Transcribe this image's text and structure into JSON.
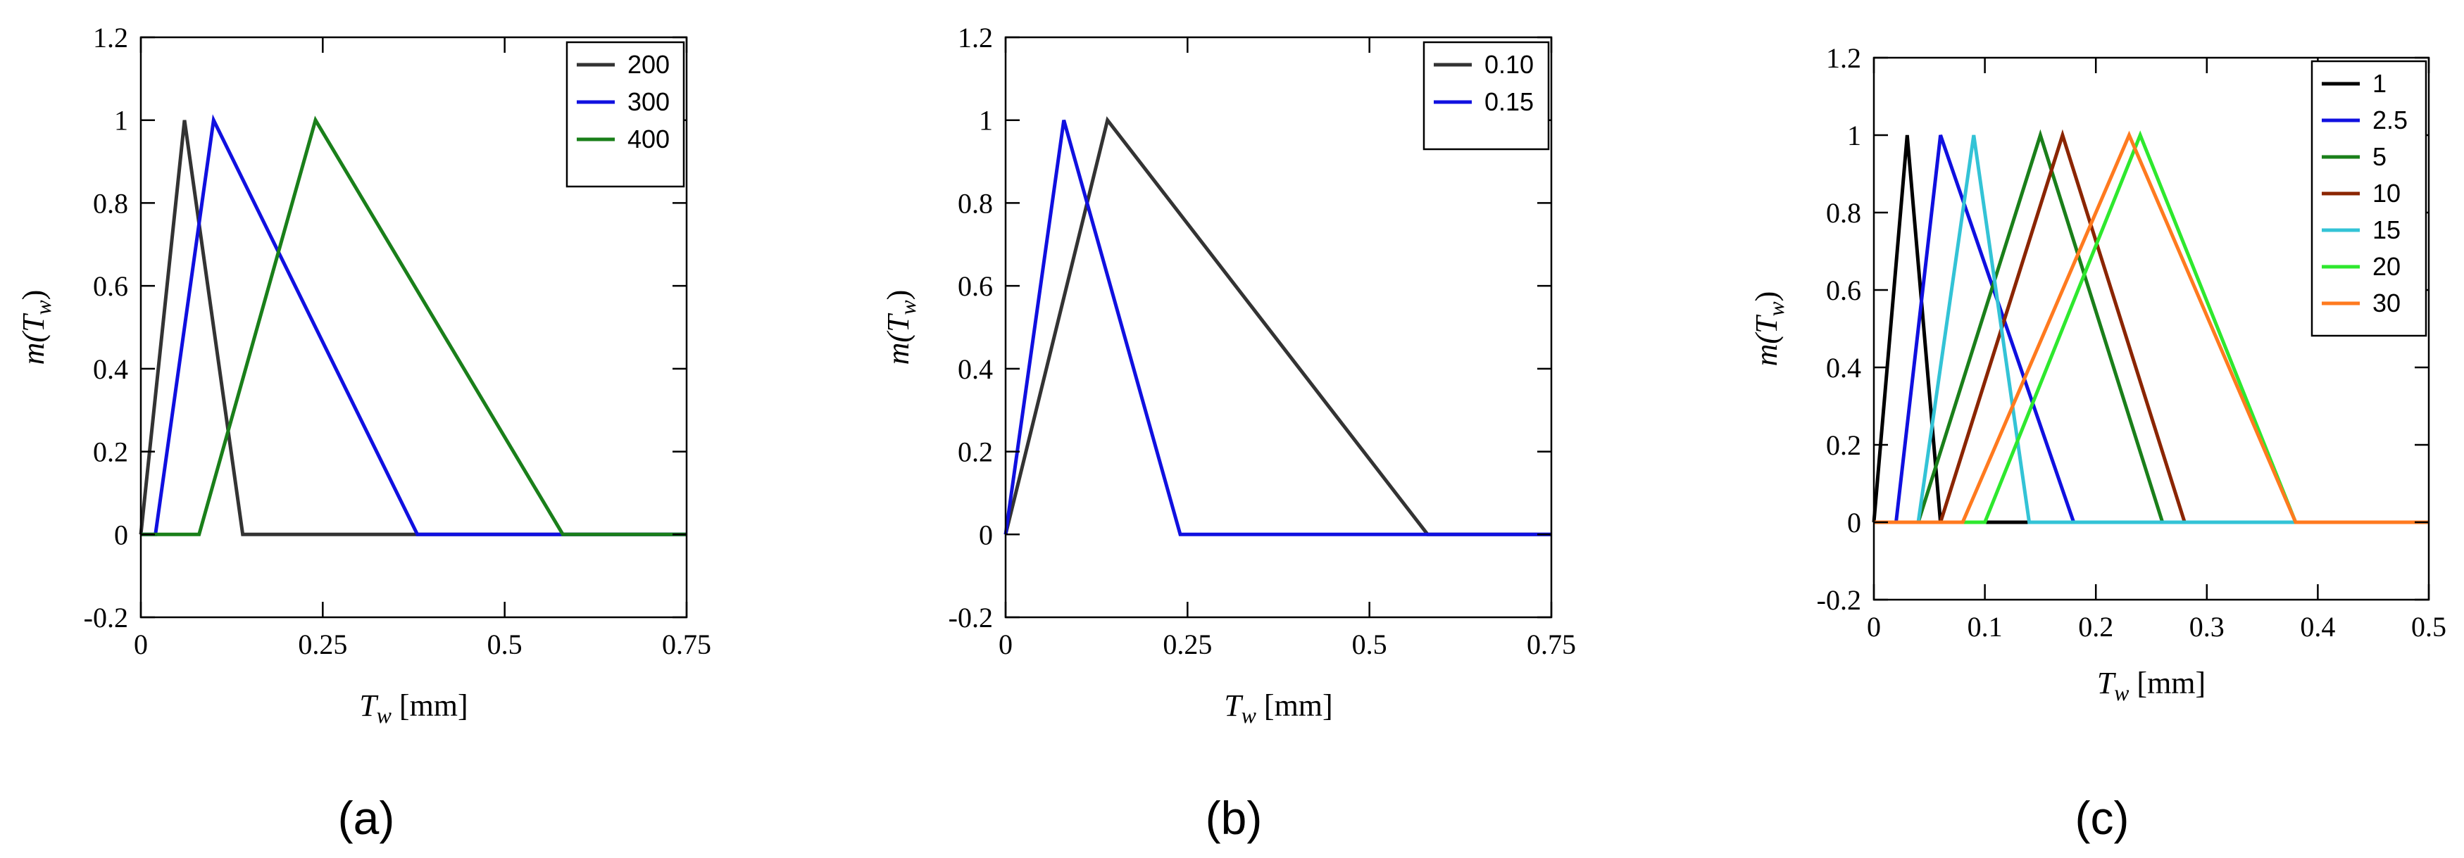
{
  "captions": [
    "(a)",
    "(b)",
    "(c)"
  ],
  "chart_data": [
    {
      "type": "line",
      "title": "",
      "xlabel": {
        "main": "T",
        "sub": "w",
        "unit": " [mm]"
      },
      "ylabel": {
        "func": "m(",
        "var": "T",
        "sub": "w",
        "close": ")"
      },
      "xlim": [
        0,
        0.75
      ],
      "ylim": [
        -0.2,
        1.2
      ],
      "xticks": [
        0,
        0.25,
        0.5,
        0.75
      ],
      "xtick_labels": [
        "0",
        "0.25",
        "0.5",
        "0.75"
      ],
      "yticks": [
        -0.2,
        0,
        0.2,
        0.4,
        0.6,
        0.8,
        1,
        1.2
      ],
      "ytick_labels": [
        "-0.2",
        "0",
        "0.2",
        "0.4",
        "0.6",
        "0.8",
        "1",
        "1.2"
      ],
      "grid": false,
      "legend_position": "top-right",
      "series": [
        {
          "name": "200",
          "color": "#333333",
          "x": [
            0,
            0.06,
            0.14,
            0.75
          ],
          "y": [
            0,
            1,
            0,
            0
          ]
        },
        {
          "name": "300",
          "color": "#1010e0",
          "x": [
            0,
            0.02,
            0.1,
            0.38,
            0.75
          ],
          "y": [
            0,
            0,
            1,
            0,
            0
          ]
        },
        {
          "name": "400",
          "color": "#1a7f1a",
          "x": [
            0,
            0.08,
            0.24,
            0.58,
            0.75
          ],
          "y": [
            0,
            0,
            1,
            0,
            0
          ]
        }
      ]
    },
    {
      "type": "line",
      "title": "",
      "xlabel": {
        "main": "T",
        "sub": "w",
        "unit": " [mm]"
      },
      "ylabel": {
        "func": "m(",
        "var": "T",
        "sub": "w",
        "close": ")"
      },
      "xlim": [
        0,
        0.75
      ],
      "ylim": [
        -0.2,
        1.2
      ],
      "xticks": [
        0,
        0.25,
        0.5,
        0.75
      ],
      "xtick_labels": [
        "0",
        "0.25",
        "0.5",
        "0.75"
      ],
      "yticks": [
        -0.2,
        0,
        0.2,
        0.4,
        0.6,
        0.8,
        1,
        1.2
      ],
      "ytick_labels": [
        "-0.2",
        "0",
        "0.2",
        "0.4",
        "0.6",
        "0.8",
        "1",
        "1.2"
      ],
      "grid": false,
      "legend_position": "top-right",
      "series": [
        {
          "name": "0.10",
          "color": "#333333",
          "x": [
            0,
            0.14,
            0.58,
            0.75
          ],
          "y": [
            0,
            1,
            0,
            0
          ]
        },
        {
          "name": "0.15",
          "color": "#1010e0",
          "x": [
            0,
            0.08,
            0.24,
            0.75
          ],
          "y": [
            0,
            1,
            0,
            0
          ]
        }
      ]
    },
    {
      "type": "line",
      "title": "",
      "xlabel": {
        "main": "T",
        "sub": "w",
        "unit": " [mm]"
      },
      "ylabel": {
        "func": "m(",
        "var": "T",
        "sub": "w",
        "close": ")"
      },
      "xlim": [
        0,
        0.5
      ],
      "ylim": [
        -0.2,
        1.2
      ],
      "xticks": [
        0,
        0.1,
        0.2,
        0.3,
        0.4,
        0.5
      ],
      "xtick_labels": [
        "0",
        "0.1",
        "0.2",
        "0.3",
        "0.4",
        "0.5"
      ],
      "yticks": [
        -0.2,
        0,
        0.2,
        0.4,
        0.6,
        0.8,
        1,
        1.2
      ],
      "ytick_labels": [
        "-0.2",
        "0",
        "0.2",
        "0.4",
        "0.6",
        "0.8",
        "1",
        "1.2"
      ],
      "grid": false,
      "legend_position": "top-right",
      "series": [
        {
          "name": "1",
          "color": "#000000",
          "x": [
            0,
            0.03,
            0.06,
            0.14,
            0.5
          ],
          "y": [
            0,
            1,
            0,
            0,
            0
          ]
        },
        {
          "name": "2.5",
          "color": "#1010e0",
          "x": [
            0,
            0.02,
            0.06,
            0.18,
            0.5
          ],
          "y": [
            0,
            0,
            1,
            0,
            0
          ]
        },
        {
          "name": "5",
          "color": "#1a7f1a",
          "x": [
            0,
            0.04,
            0.15,
            0.26,
            0.5
          ],
          "y": [
            0,
            0,
            1,
            0,
            0
          ]
        },
        {
          "name": "10",
          "color": "#8b2500",
          "x": [
            0,
            0.06,
            0.17,
            0.28,
            0.5
          ],
          "y": [
            0,
            0,
            1,
            0,
            0
          ]
        },
        {
          "name": "15",
          "color": "#33c3d6",
          "x": [
            0,
            0.04,
            0.09,
            0.14,
            0.5
          ],
          "y": [
            0,
            0,
            1,
            0,
            0
          ]
        },
        {
          "name": "20",
          "color": "#2ee82e",
          "x": [
            0,
            0.1,
            0.24,
            0.38,
            0.5
          ],
          "y": [
            0,
            0,
            1,
            0,
            0
          ]
        },
        {
          "name": "30",
          "color": "#ff7a1f",
          "x": [
            0,
            0.08,
            0.23,
            0.38,
            0.5
          ],
          "y": [
            0,
            0,
            1,
            0,
            0
          ]
        }
      ]
    }
  ]
}
